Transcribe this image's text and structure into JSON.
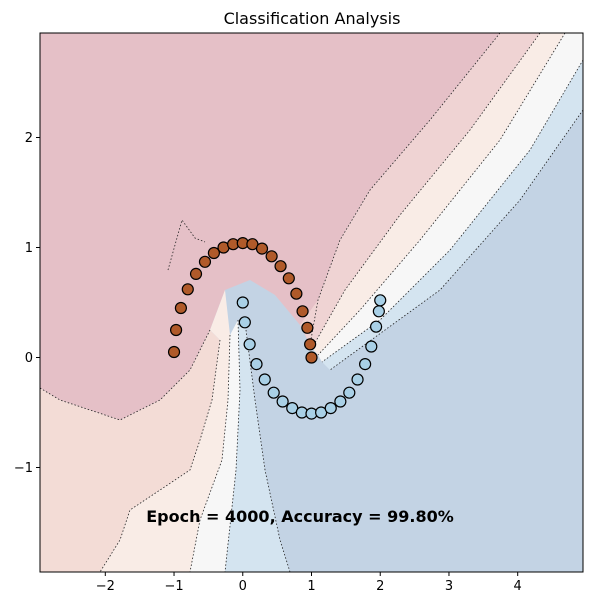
{
  "chart_data": {
    "type": "scatter",
    "title": "Classification Analysis",
    "xlabel": "",
    "ylabel": "",
    "xlim": [
      -2.95,
      4.95
    ],
    "ylim": [
      -1.95,
      2.95
    ],
    "xticks": [
      -2,
      -1,
      0,
      1,
      2,
      3,
      4
    ],
    "yticks": [
      -1,
      0,
      1,
      2
    ],
    "xtick_labels": [
      "−2",
      "−1",
      "0",
      "1",
      "2",
      "3",
      "4"
    ],
    "ytick_labels": [
      "−1",
      "0",
      "1",
      "2"
    ],
    "grid": false,
    "annotation": "Epoch = 4000, Accuracy = 99.80%",
    "background": "decision-boundary contour (RdBu colormap)",
    "colors": {
      "class_0": "#b05a2a",
      "class_1": "#a9d0e6",
      "region_0": "#e5c0c7",
      "region_1": "#c3d3e4"
    },
    "series": [
      {
        "class": 0,
        "shape": "upper half-moon",
        "x": [
          -1.0,
          -0.97,
          -0.9,
          -0.8,
          -0.68,
          -0.55,
          -0.42,
          -0.28,
          -0.14,
          0.0,
          0.14,
          0.28,
          0.42,
          0.55,
          0.67,
          0.78,
          0.87,
          0.94,
          0.98,
          1.0
        ],
        "y": [
          0.05,
          0.25,
          0.45,
          0.62,
          0.76,
          0.87,
          0.95,
          1.0,
          1.03,
          1.04,
          1.03,
          0.99,
          0.92,
          0.83,
          0.72,
          0.58,
          0.42,
          0.27,
          0.12,
          0.0
        ]
      },
      {
        "class": 1,
        "shape": "lower half-moon",
        "x": [
          0.0,
          0.03,
          0.1,
          0.2,
          0.32,
          0.45,
          0.58,
          0.72,
          0.86,
          1.0,
          1.14,
          1.28,
          1.42,
          1.55,
          1.67,
          1.78,
          1.87,
          1.94,
          1.98,
          2.0
        ],
        "y": [
          0.5,
          0.32,
          0.12,
          -0.06,
          -0.2,
          -0.32,
          -0.4,
          -0.46,
          -0.5,
          -0.51,
          -0.5,
          -0.46,
          -0.4,
          -0.32,
          -0.2,
          -0.06,
          0.1,
          0.28,
          0.42,
          0.52
        ]
      }
    ]
  }
}
